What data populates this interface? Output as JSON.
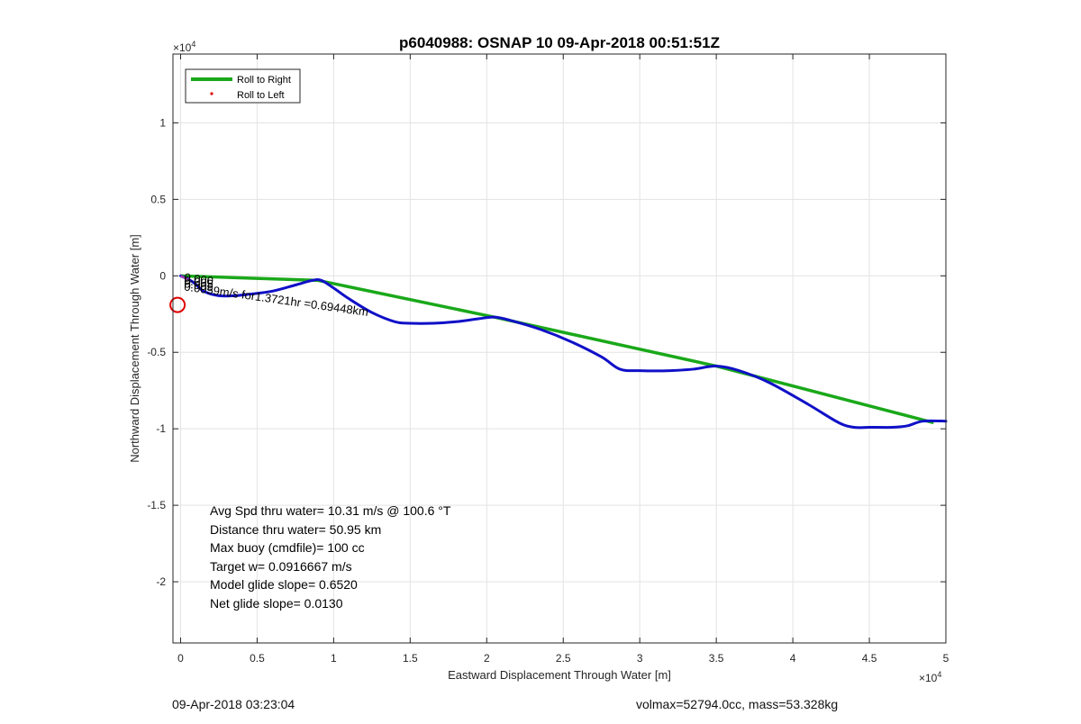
{
  "footer": {
    "timestamp": "09-Apr-2018 03:23:04",
    "vol_mass": "volmax=52794.0cc, mass=53.328kg"
  },
  "chart_data": {
    "type": "line",
    "title": "p6040988: OSNAP 10 09-Apr-2018 00:51:51Z",
    "xlabel": "Eastward Displacement Through Water [m]",
    "ylabel": "Northward Displacement Through Water [m]",
    "x_exponent_label": "×10",
    "y_exponent_label": "×10",
    "exponent_power": "4",
    "xlim": [
      -0.05,
      5.0
    ],
    "ylim": [
      -2.4,
      1.45
    ],
    "exponent": 4,
    "xticks": [
      0,
      0.5,
      1,
      1.5,
      2,
      2.5,
      3,
      3.5,
      4,
      4.5,
      5
    ],
    "xtick_labels": [
      "0",
      "0.5",
      "1",
      "1.5",
      "2",
      "2.5",
      "3",
      "3.5",
      "4",
      "4.5",
      "5"
    ],
    "yticks": [
      1,
      0.5,
      0,
      -0.5,
      -1,
      -1.5,
      -2
    ],
    "ytick_labels": [
      "1",
      "0.5",
      "0",
      "-0.5",
      "-1",
      "-1.5",
      "-2"
    ],
    "grid": true,
    "legend": {
      "placement": "top-left",
      "entries": [
        {
          "name": "Roll to Right",
          "color": "#1aa81a",
          "style": "line"
        },
        {
          "name": "Roll to Left",
          "color": "#e00000",
          "style": "dot"
        }
      ]
    },
    "series": [
      {
        "name": "Roll to Right",
        "color": "#1aa81a",
        "x": [
          0,
          0.9,
          2.05,
          3.5,
          4.92
        ],
        "y": [
          0,
          -0.03,
          -0.27,
          -0.59,
          -0.96
        ]
      },
      {
        "color": "#1010c8",
        "x": [
          0,
          0.08,
          0.15,
          0.25,
          0.35,
          0.45,
          0.6,
          0.75,
          0.86,
          0.92,
          1.0,
          1.1,
          1.25,
          1.4,
          1.5,
          1.65,
          1.8,
          1.95,
          2.05,
          2.15,
          2.35,
          2.55,
          2.75,
          2.87,
          3.0,
          3.2,
          3.35,
          3.5,
          3.65,
          3.85,
          4.1,
          4.3,
          4.4,
          4.5,
          4.65,
          4.75,
          4.85,
          5.0
        ],
        "y": [
          0,
          -0.04,
          -0.1,
          -0.13,
          -0.13,
          -0.12,
          -0.1,
          -0.06,
          -0.03,
          -0.03,
          -0.08,
          -0.15,
          -0.24,
          -0.3,
          -0.31,
          -0.31,
          -0.3,
          -0.28,
          -0.27,
          -0.29,
          -0.35,
          -0.43,
          -0.53,
          -0.61,
          -0.62,
          -0.62,
          -0.61,
          -0.59,
          -0.62,
          -0.7,
          -0.84,
          -0.96,
          -0.99,
          -0.99,
          -0.99,
          -0.98,
          -0.95,
          -0.95
        ]
      }
    ],
    "marker": {
      "shape": "circle",
      "color": "#e00000",
      "x": -0.02,
      "y": -0.19
    },
    "annotations": [
      {
        "text": "0.000",
        "x": 0.02,
        "y": -0.005,
        "rotation": 8,
        "anchor": "start"
      },
      {
        "text": "0.005",
        "x": 0.02,
        "y": -0.025,
        "rotation": 8,
        "anchor": "start"
      },
      {
        "text": "0.005",
        "x": 0.02,
        "y": -0.045,
        "rotation": 8,
        "anchor": "start"
      },
      {
        "text": "0.0059m/s for1.3721hr =0.69448km",
        "x": 0.02,
        "y": -0.065,
        "rotation": 8,
        "anchor": "start"
      }
    ],
    "stats": [
      "Avg Spd thru water= 10.31 m/s @ 100.6 °T",
      "Distance thru water= 50.95 km",
      "Max buoy (cmdfile)= 100 cc",
      "Target w= 0.0916667 m/s",
      "Model glide slope= 0.6520",
      "Net glide slope= 0.0130"
    ]
  }
}
